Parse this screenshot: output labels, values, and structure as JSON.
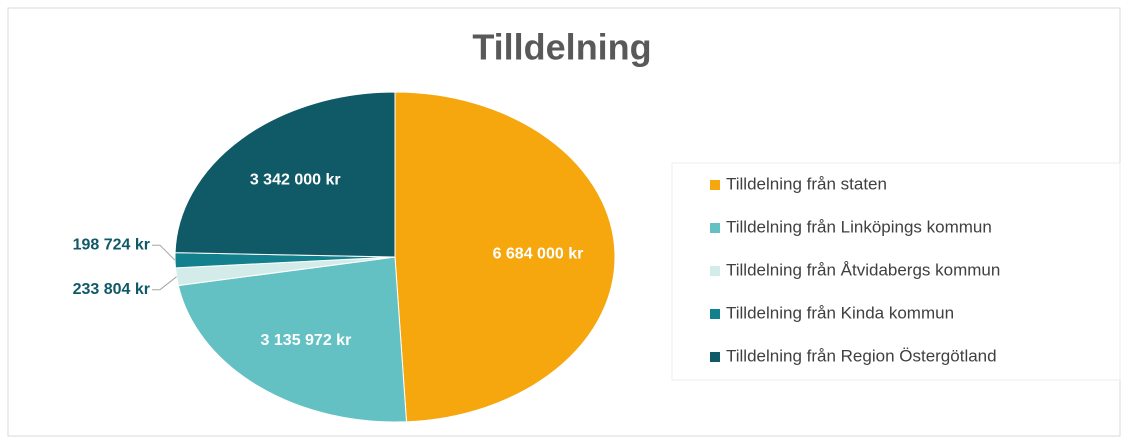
{
  "chart_data": {
    "type": "pie",
    "title": "Tilldelning",
    "categories": [
      "Tilldelning från staten",
      "Tilldelning från Linköpings kommun",
      "Tilldelning från Åtvidabergs kommun",
      "Tilldelning från Kinda kommun",
      "Tilldelning från Region Östergötland"
    ],
    "values": [
      6684000,
      3135972,
      233804,
      198724,
      3342000
    ],
    "value_labels": [
      "6 684 000 kr",
      "3 135 972 kr",
      "233 804 kr",
      "198 724 kr",
      "3 342 000 kr"
    ],
    "colors": [
      "#f5a70d",
      "#63c1c4",
      "#d4ece9",
      "#13808d",
      "#0f5a66"
    ],
    "legend": "right"
  }
}
